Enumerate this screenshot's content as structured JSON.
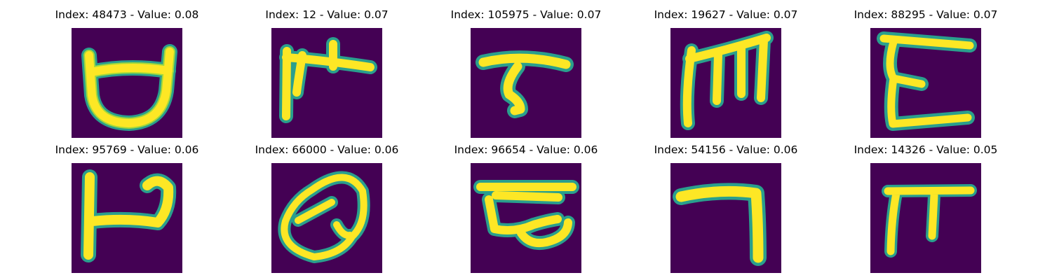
{
  "figure": {
    "background_color": "#ffffff",
    "panel_colors": {
      "background": "#440154",
      "stroke_edge": "#2a9f8d",
      "stroke_core": "#fde725",
      "stroke_mid": "#9fd83d"
    },
    "panels": [
      {
        "title": "Index: 48473 - Value: 0.08",
        "index": 48473,
        "value": 0.08,
        "glyph_name": "u-cup-glyph"
      },
      {
        "title": "Index: 12 - Value: 0.07",
        "index": 12,
        "value": 0.07,
        "glyph_name": "pi-like-glyph"
      },
      {
        "title": "Index: 105975 - Value: 0.07",
        "index": 105975,
        "value": 0.07,
        "glyph_name": "t-hook-glyph"
      },
      {
        "title": "Index: 19627 - Value: 0.07",
        "index": 19627,
        "value": 0.07,
        "glyph_name": "m-like-glyph"
      },
      {
        "title": "Index: 88295 - Value: 0.07",
        "index": 88295,
        "value": 0.07,
        "glyph_name": "e-like-glyph"
      },
      {
        "title": "Index: 95769 - Value: 0.06",
        "index": 95769,
        "value": 0.06,
        "glyph_name": "p-like-glyph"
      },
      {
        "title": "Index: 66000 - Value: 0.06",
        "index": 66000,
        "value": 0.06,
        "glyph_name": "q-like-glyph"
      },
      {
        "title": "Index: 96654 - Value: 0.06",
        "index": 96654,
        "value": 0.06,
        "glyph_name": "bar-loop-glyph"
      },
      {
        "title": "Index: 54156 - Value: 0.06",
        "index": 54156,
        "value": 0.06,
        "glyph_name": "seven-like-glyph"
      },
      {
        "title": "Index: 14326 - Value: 0.05",
        "index": 14326,
        "value": 0.05,
        "glyph_name": "pi-bar-glyph"
      }
    ]
  }
}
